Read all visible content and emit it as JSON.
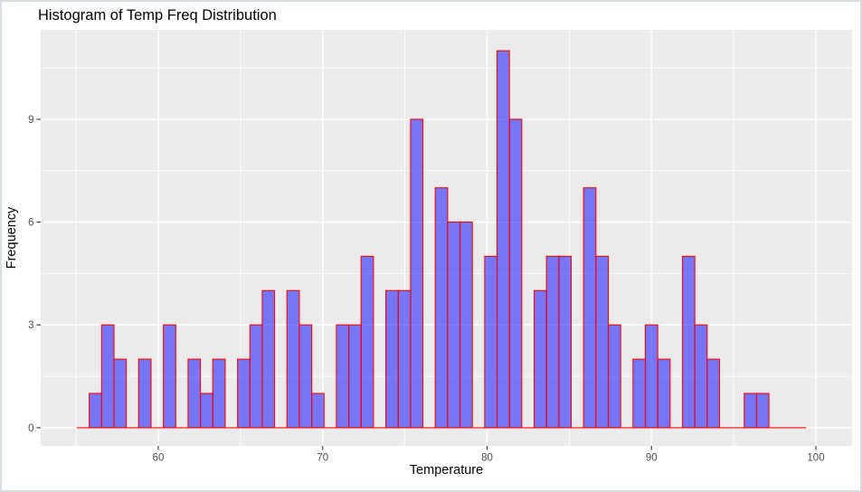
{
  "frame": {
    "background_color": "#ffffff",
    "border_color": "#d6dde6"
  },
  "chart_data": {
    "type": "histogram",
    "title": "Histogram of Temp Freq Distribution",
    "xlabel": "Temperature",
    "ylabel": "Frequency",
    "x_major_ticks": [
      60,
      70,
      80,
      90,
      100
    ],
    "x_minor_gridlines": [
      55,
      65,
      75,
      85,
      95
    ],
    "y_major_ticks": [
      0,
      3,
      6,
      9
    ],
    "y_minor_gridlines": [
      1.5,
      4.5,
      7.5,
      10.5
    ],
    "xlim": [
      52.85,
      102.2
    ],
    "ylim": [
      -0.53,
      11.61
    ],
    "grid": true,
    "legend": "none",
    "bins": {
      "start": 55.05,
      "width": 0.7517,
      "counts": [
        0,
        1,
        3,
        2,
        0,
        2,
        0,
        3,
        0,
        2,
        1,
        2,
        0,
        2,
        3,
        4,
        0,
        4,
        3,
        1,
        0,
        3,
        3,
        5,
        0,
        4,
        4,
        9,
        0,
        7,
        6,
        6,
        0,
        5,
        11,
        9,
        0,
        4,
        5,
        5,
        0,
        7,
        5,
        3,
        0,
        2,
        3,
        2,
        0,
        5,
        3,
        2,
        0,
        0,
        1,
        1,
        0,
        0,
        0
      ],
      "total_count": 153,
      "max_count": 11
    },
    "baseline_extent": [
      55.05,
      99.41
    ],
    "style": {
      "bar_fill": "rgba(0,0,255,0.5)",
      "bar_stroke": "#ff0000",
      "panel_bg": "#ebebeb",
      "grid_color": "#ffffff",
      "tick_color": "#333333",
      "tick_label_color": "#4d4d4d",
      "title_color": "#000000",
      "axis_title_color": "#000000"
    }
  }
}
